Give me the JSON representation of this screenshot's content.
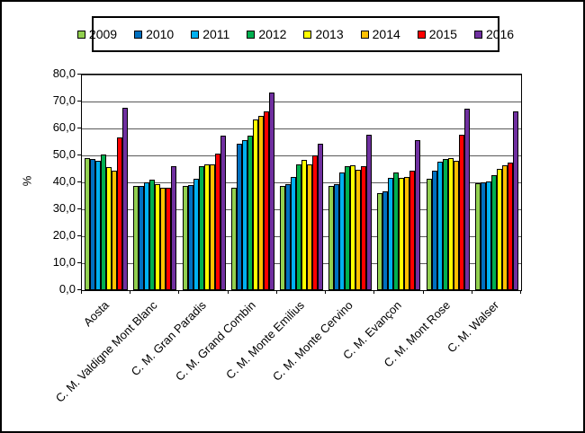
{
  "chart_data": {
    "type": "bar",
    "title": "",
    "xlabel": "",
    "ylabel": "%",
    "ylim": [
      0,
      80
    ],
    "ytick_step": 10,
    "ytick_labels": [
      "0,0",
      "10,0",
      "20,0",
      "30,0",
      "40,0",
      "50,0",
      "60,0",
      "70,0",
      "80,0"
    ],
    "grid": "horizontal",
    "legend_position": "top-center",
    "categories": [
      "Aosta",
      "C. M. Valdigne Mont Blanc",
      "C. M. Gran Paradis",
      "C. M. Grand Combin",
      "C. M. Monte Emilius",
      "C. M. Monte Cervino",
      "C. M. Evançon",
      "C. M. Mont Rose",
      "C. M. Walser"
    ],
    "series": [
      {
        "name": "2009",
        "color": "#92D050",
        "values": [
          48.9,
          38.8,
          38.6,
          38.1,
          38.5,
          38.6,
          35.9,
          41.4,
          39.5
        ]
      },
      {
        "name": "2010",
        "color": "#0070C0",
        "values": [
          48.6,
          38.7,
          39.1,
          54.3,
          39.2,
          39.3,
          36.5,
          44.4,
          40.0
        ]
      },
      {
        "name": "2011",
        "color": "#00B0F0",
        "values": [
          48.1,
          40.0,
          41.3,
          55.6,
          41.9,
          43.5,
          41.5,
          47.7,
          40.4
        ]
      },
      {
        "name": "2012",
        "color": "#00B050",
        "values": [
          50.3,
          41.0,
          46.0,
          57.2,
          46.7,
          46.0,
          43.5,
          48.8,
          42.8
        ]
      },
      {
        "name": "2013",
        "color": "#FFFF00",
        "values": [
          45.7,
          39.4,
          46.6,
          63.4,
          48.2,
          46.3,
          41.6,
          49.1,
          44.9
        ]
      },
      {
        "name": "2014",
        "color": "#FFC000",
        "values": [
          44.4,
          37.9,
          46.8,
          64.8,
          46.5,
          44.8,
          41.9,
          48.0,
          46.3
        ]
      },
      {
        "name": "2015",
        "color": "#FF0000",
        "values": [
          56.6,
          38.1,
          50.8,
          66.2,
          49.9,
          46.0,
          44.3,
          57.5,
          47.2
        ]
      },
      {
        "name": "2016",
        "color": "#7030A0",
        "values": [
          67.5,
          46.1,
          57.4,
          73.2,
          54.3,
          57.6,
          55.5,
          67.2,
          66.3
        ]
      }
    ],
    "colors": {
      "axis": "#000000",
      "gridline": "#595959",
      "background": "#FFFFFF",
      "border": "#000000"
    }
  }
}
